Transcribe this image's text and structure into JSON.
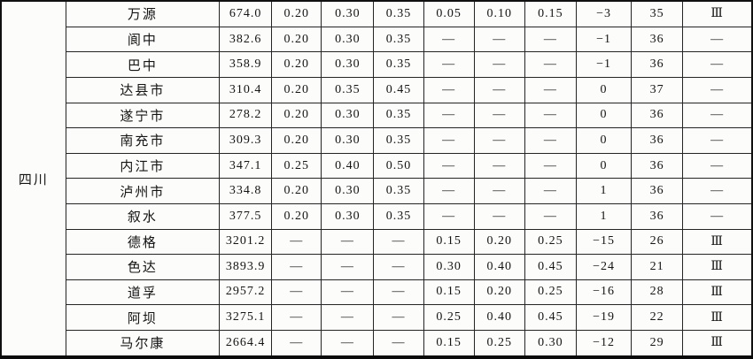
{
  "table": {
    "province_label": "四川",
    "zone_symbol": "Ⅲ",
    "empty_symbol": "—",
    "rows": [
      {
        "city": "万源",
        "values": [
          "674.0",
          "0.20",
          "0.30",
          "0.35",
          "0.05",
          "0.10",
          "0.15",
          "−3",
          "35",
          "Ⅲ"
        ]
      },
      {
        "city": "阆中",
        "values": [
          "382.6",
          "0.20",
          "0.30",
          "0.35",
          "—",
          "—",
          "—",
          "−1",
          "36",
          "—"
        ]
      },
      {
        "city": "巴中",
        "values": [
          "358.9",
          "0.20",
          "0.30",
          "0.35",
          "—",
          "—",
          "—",
          "−1",
          "36",
          "—"
        ]
      },
      {
        "city": "达县市",
        "values": [
          "310.4",
          "0.20",
          "0.35",
          "0.45",
          "—",
          "—",
          "—",
          "0",
          "37",
          "—"
        ]
      },
      {
        "city": "遂宁市",
        "values": [
          "278.2",
          "0.20",
          "0.30",
          "0.35",
          "—",
          "—",
          "—",
          "0",
          "36",
          "—"
        ]
      },
      {
        "city": "南充市",
        "values": [
          "309.3",
          "0.20",
          "0.30",
          "0.35",
          "—",
          "—",
          "—",
          "0",
          "36",
          "—"
        ]
      },
      {
        "city": "内江市",
        "values": [
          "347.1",
          "0.25",
          "0.40",
          "0.50",
          "—",
          "—",
          "—",
          "0",
          "36",
          "—"
        ]
      },
      {
        "city": "泸州市",
        "values": [
          "334.8",
          "0.20",
          "0.30",
          "0.35",
          "—",
          "—",
          "—",
          "1",
          "36",
          "—"
        ]
      },
      {
        "city": "叙水",
        "values": [
          "377.5",
          "0.20",
          "0.30",
          "0.35",
          "—",
          "—",
          "—",
          "1",
          "36",
          "—"
        ]
      },
      {
        "city": "德格",
        "values": [
          "3201.2",
          "—",
          "—",
          "—",
          "0.15",
          "0.20",
          "0.25",
          "−15",
          "26",
          "Ⅲ"
        ]
      },
      {
        "city": "色达",
        "values": [
          "3893.9",
          "—",
          "—",
          "—",
          "0.30",
          "0.40",
          "0.45",
          "−24",
          "21",
          "Ⅲ"
        ]
      },
      {
        "city": "道孚",
        "values": [
          "2957.2",
          "—",
          "—",
          "—",
          "0.15",
          "0.20",
          "0.25",
          "−16",
          "28",
          "Ⅲ"
        ]
      },
      {
        "city": "阿坝",
        "values": [
          "3275.1",
          "—",
          "—",
          "—",
          "0.25",
          "0.40",
          "0.45",
          "−19",
          "22",
          "Ⅲ"
        ]
      },
      {
        "city": "马尔康",
        "values": [
          "2664.4",
          "—",
          "—",
          "—",
          "0.15",
          "0.25",
          "0.30",
          "−12",
          "29",
          "Ⅲ"
        ]
      }
    ]
  }
}
